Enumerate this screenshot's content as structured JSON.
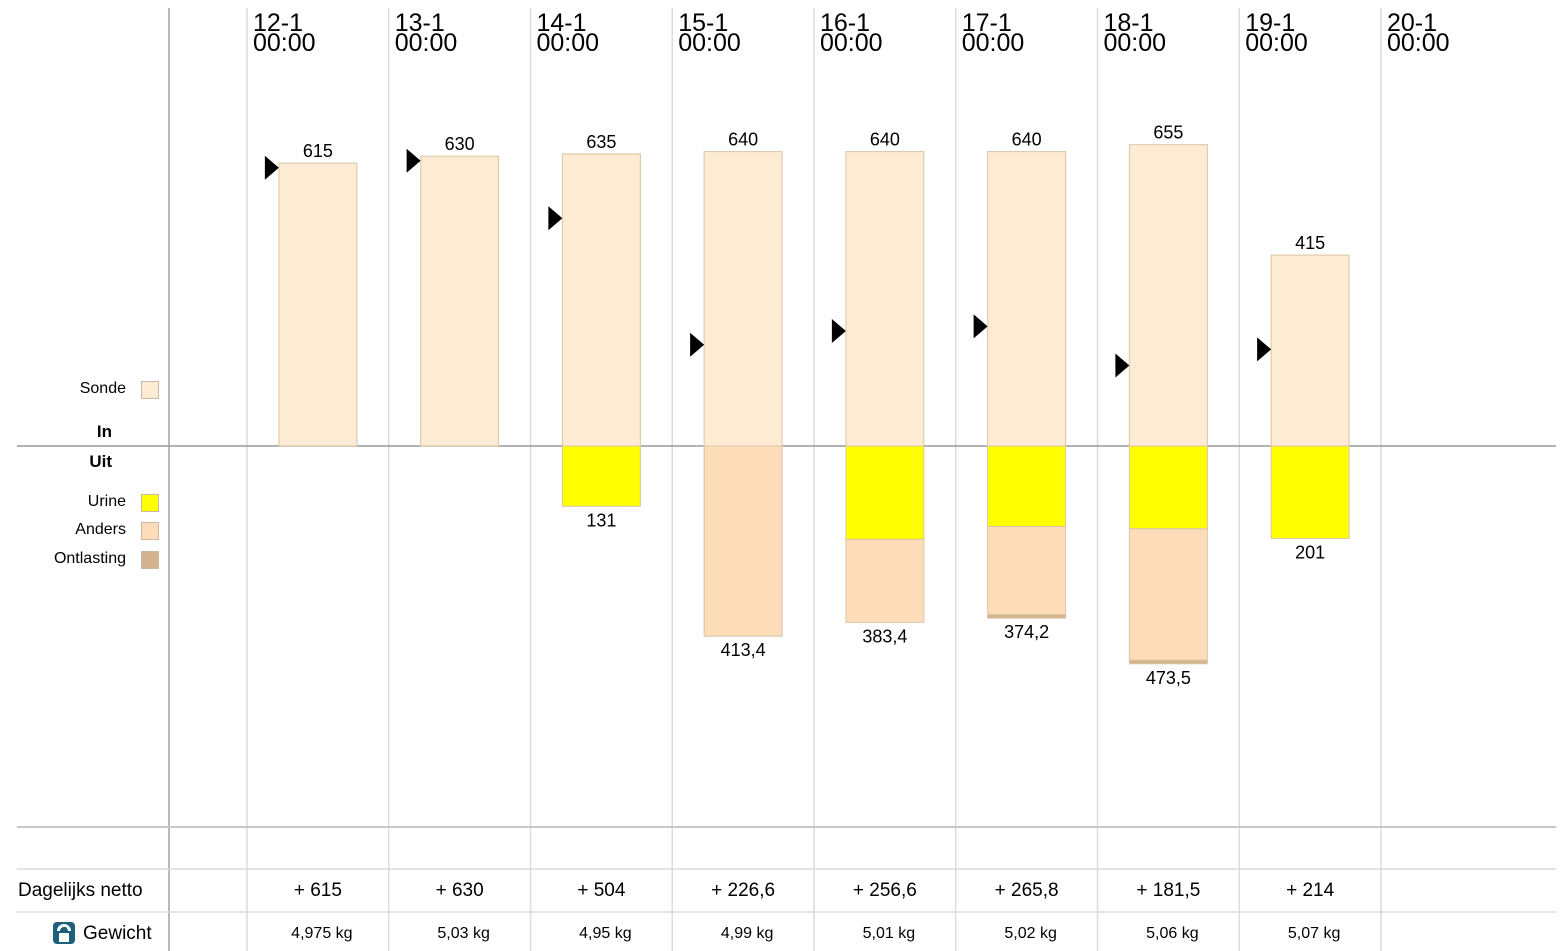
{
  "chart_data": {
    "type": "bar",
    "columns": [
      {
        "date": "12-1",
        "time": "00:00"
      },
      {
        "date": "13-1",
        "time": "00:00"
      },
      {
        "date": "14-1",
        "time": "00:00"
      },
      {
        "date": "15-1",
        "time": "00:00"
      },
      {
        "date": "16-1",
        "time": "00:00"
      },
      {
        "date": "17-1",
        "time": "00:00"
      },
      {
        "date": "18-1",
        "time": "00:00"
      },
      {
        "date": "19-1",
        "time": "00:00"
      },
      {
        "date": "20-1",
        "time": "00:00"
      }
    ],
    "sections": {
      "in": "In",
      "out": "Uit"
    },
    "series": [
      {
        "name": "Sonde",
        "direction": "in",
        "color": "#fdebd3",
        "values": [
          615,
          630,
          635,
          640,
          640,
          640,
          655,
          415,
          null
        ]
      },
      {
        "name": "Urine",
        "direction": "out",
        "color": "#ffff00",
        "values": [
          null,
          null,
          131,
          null,
          203,
          175,
          180,
          201,
          null
        ]
      },
      {
        "name": "Anders",
        "direction": "out",
        "color": "#fddcba",
        "values": [
          null,
          null,
          null,
          413.4,
          180.4,
          191.2,
          285.5,
          null,
          null
        ]
      },
      {
        "name": "Ontlasting",
        "direction": "out",
        "color": "#d4b48e",
        "values": [
          null,
          null,
          null,
          null,
          null,
          8,
          8,
          null,
          null
        ]
      }
    ],
    "in_totals": [
      "615",
      "630",
      "635",
      "640",
      "640",
      "640",
      "655",
      "415",
      ""
    ],
    "out_totals": [
      "",
      "",
      "131",
      "413,4",
      "383,4",
      "374,2",
      "473,5",
      "201",
      ""
    ],
    "markers": [
      {
        "day": 0,
        "value": 605
      },
      {
        "day": 1,
        "value": 620
      },
      {
        "day": 2,
        "value": 495
      },
      {
        "day": 3,
        "value": 220
      },
      {
        "day": 4,
        "value": 250
      },
      {
        "day": 5,
        "value": 260
      },
      {
        "day": 6,
        "value": 175
      },
      {
        "day": 7,
        "value": 210
      }
    ],
    "ylim": [
      -700,
      900
    ],
    "grid": true,
    "legend_position": "left"
  },
  "summary": {
    "net_label": "Dagelijks netto",
    "net_values": [
      "+ 615",
      "+ 630",
      "+ 504",
      "+ 226,6",
      "+ 256,6",
      "+ 265,8",
      "+ 181,5",
      "+ 214",
      ""
    ],
    "weight_label": "Gewicht",
    "weight_icon": "scale-icon",
    "weight_values": [
      "4,975 kg",
      "5,03 kg",
      "4,95 kg",
      "4,99 kg",
      "5,01 kg",
      "5,02 kg",
      "5,06 kg",
      "5,07 kg",
      ""
    ]
  }
}
